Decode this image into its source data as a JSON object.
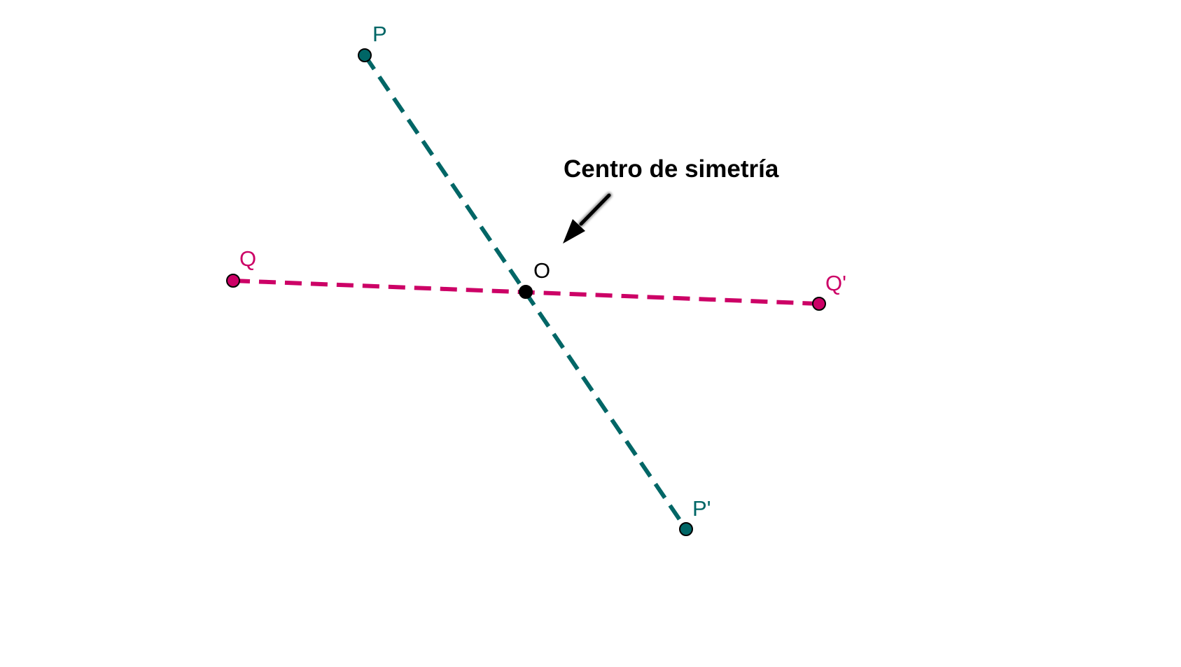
{
  "annotation": {
    "text": "Centro de simetría",
    "color": "#000000"
  },
  "colors": {
    "p_segment": "#006666",
    "q_segment": "#cc0066",
    "center": "#000000"
  },
  "points": {
    "P": {
      "label": "P"
    },
    "P_prime": {
      "label": "P'"
    },
    "Q": {
      "label": "Q"
    },
    "Q_prime": {
      "label": "Q'"
    },
    "O": {
      "label": "O"
    }
  }
}
